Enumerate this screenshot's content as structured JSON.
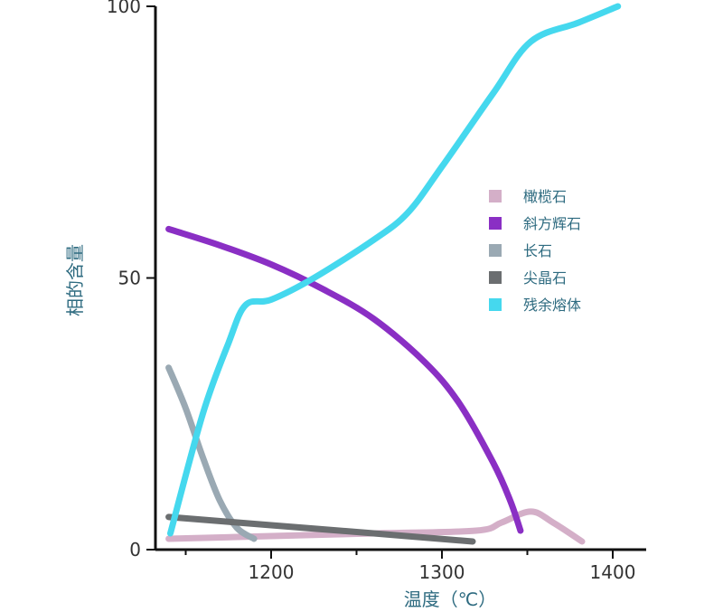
{
  "chart_data": {
    "type": "line",
    "title": "",
    "xlabel": "温度（℃）",
    "ylabel": "相的含量",
    "xlim": [
      1135,
      1420
    ],
    "ylim": [
      0,
      100
    ],
    "x_ticks": [
      1200,
      1300,
      1400
    ],
    "x_tick_labels": [
      "1200",
      "1300",
      "1400"
    ],
    "x_minor_ticks": [
      1150,
      1250,
      1350
    ],
    "y_ticks": [
      0,
      50,
      100
    ],
    "y_tick_labels": [
      "0",
      "50",
      "100"
    ],
    "grid": false,
    "legend_position": "right",
    "series": [
      {
        "name": "橄榄石",
        "color": "#d4afc8",
        "points": [
          [
            1140,
            2
          ],
          [
            1200,
            2.5
          ],
          [
            1260,
            3
          ],
          [
            1320,
            3.5
          ],
          [
            1335,
            5
          ],
          [
            1352,
            7
          ],
          [
            1365,
            5
          ],
          [
            1382,
            1.5
          ]
        ]
      },
      {
        "name": "斜方辉石",
        "color": "#8a2fc4",
        "points": [
          [
            1140,
            59
          ],
          [
            1170,
            56
          ],
          [
            1200,
            52.5
          ],
          [
            1230,
            48
          ],
          [
            1260,
            42.5
          ],
          [
            1290,
            34.5
          ],
          [
            1310,
            27
          ],
          [
            1330,
            16
          ],
          [
            1340,
            9
          ],
          [
            1346,
            3.5
          ]
        ]
      },
      {
        "name": "长石",
        "color": "#9aa9b3",
        "points": [
          [
            1140,
            33.5
          ],
          [
            1150,
            26
          ],
          [
            1160,
            17
          ],
          [
            1170,
            9
          ],
          [
            1180,
            4
          ],
          [
            1190,
            2
          ]
        ]
      },
      {
        "name": "尖晶石",
        "color": "#6b6e70",
        "points": [
          [
            1140,
            6
          ],
          [
            1200,
            4.5
          ],
          [
            1260,
            3
          ],
          [
            1318,
            1.5
          ]
        ]
      },
      {
        "name": "残余熔体",
        "color": "#45d8ee",
        "points": [
          [
            1141,
            3
          ],
          [
            1160,
            25
          ],
          [
            1175,
            38
          ],
          [
            1185,
            45
          ],
          [
            1200,
            46
          ],
          [
            1225,
            50
          ],
          [
            1260,
            57
          ],
          [
            1280,
            62
          ],
          [
            1300,
            70.5
          ],
          [
            1330,
            84
          ],
          [
            1352,
            93.5
          ],
          [
            1380,
            97
          ],
          [
            1403,
            100
          ]
        ]
      }
    ]
  }
}
